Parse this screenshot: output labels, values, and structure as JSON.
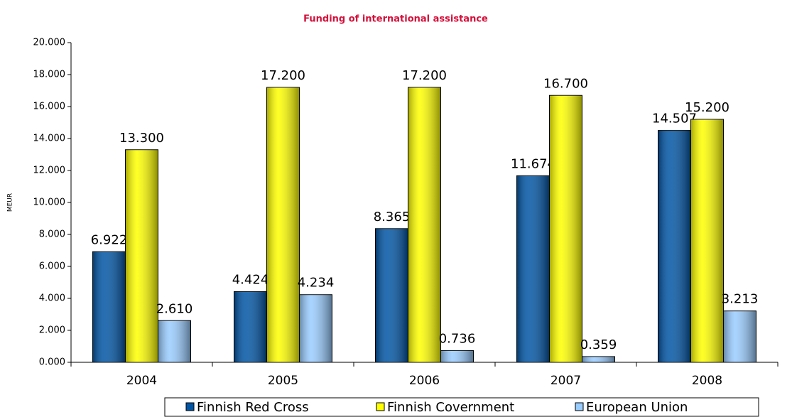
{
  "chart_data": {
    "type": "bar",
    "title": "Funding of international assistance",
    "y_label": "MEUR",
    "categories": [
      "2004",
      "2005",
      "2006",
      "2007",
      "2008"
    ],
    "series": [
      {
        "name": "Finnish Red Cross",
        "color": "#0055a5",
        "values": [
          6.922,
          4.424,
          8.365,
          11.674,
          14.507
        ]
      },
      {
        "name": "Finnish Covernment",
        "color": "#ffff00",
        "values": [
          13.3,
          17.2,
          17.2,
          16.7,
          15.2
        ],
        "value_labels": [
          "13.300",
          "17.200",
          "17.200",
          "16.700",
          "15.200"
        ]
      },
      {
        "name": "European Union",
        "color": "#99ccff",
        "values": [
          2.61,
          4.234,
          0.736,
          0.359,
          3.213
        ],
        "value_labels": [
          "2.610",
          "4.234",
          "0.736",
          "0.359",
          "3.213"
        ]
      }
    ],
    "ylim": [
      0,
      20
    ],
    "yticks": [
      {
        "value": 0,
        "label": "0.000"
      },
      {
        "value": 2,
        "label": "2.000"
      },
      {
        "value": 4,
        "label": "4.000"
      },
      {
        "value": 6,
        "label": "6.000"
      },
      {
        "value": 8,
        "label": "8.000"
      },
      {
        "value": 10,
        "label": "10.000"
      },
      {
        "value": 12,
        "label": "12.000"
      },
      {
        "value": 14,
        "label": "14.000"
      },
      {
        "value": 16,
        "label": "16.000"
      },
      {
        "value": 18,
        "label": "18.000"
      },
      {
        "value": 20,
        "label": "20.000"
      }
    ],
    "grid": false,
    "legend": "bottom"
  }
}
